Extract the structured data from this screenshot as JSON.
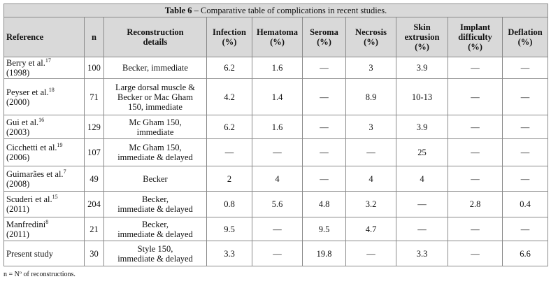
{
  "title": {
    "label": "Table 6",
    "text": " – Comparative table of complications in recent studies."
  },
  "table": {
    "header": [
      "Reference",
      "n",
      "Reconstruction\ndetails",
      "Infection\n(%)",
      "Hematoma\n(%)",
      "Seroma\n(%)",
      "Necrosis\n(%)",
      "Skin\nextrusion\n(%)",
      "Implant\ndifficulty\n(%)",
      "Deflation\n(%)"
    ],
    "rows": [
      [
        {
          "name": "Berry et al.",
          "ref": "17",
          "year": "(1998)"
        },
        "100",
        "Becker, immediate",
        "6.2",
        "1.6",
        "—",
        "3",
        "3.9",
        "—",
        "—"
      ],
      [
        {
          "name": "Peyser et al.",
          "ref": "18",
          "year": "(2000)"
        },
        "71",
        "Large dorsal muscle &\nBecker or Mac Gham\n150, immediate",
        "4.2",
        "1.4",
        "—",
        "8.9",
        "10-13",
        "—",
        "—"
      ],
      [
        {
          "name": "Gui et al.",
          "ref": "16",
          "year": "(2003)"
        },
        "129",
        "Mc Gham 150,\nimmediate",
        "6.2",
        "1.6",
        "—",
        "3",
        "3.9",
        "—",
        "—"
      ],
      [
        {
          "name": "Cicchetti et al.",
          "ref": "19",
          "year": "(2006)"
        },
        "107",
        "Mc Gham 150,\nimmediate & delayed",
        "—",
        "—",
        "—",
        "—",
        "25",
        "—",
        "—"
      ],
      [
        {
          "name": "Guimarães et al.",
          "ref": "7",
          "year": "(2008)"
        },
        "49",
        "Becker",
        "2",
        "4",
        "—",
        "4",
        "4",
        "—",
        "—"
      ],
      [
        {
          "name": "Scuderi et al.",
          "ref": "15",
          "year": "(2011)"
        },
        "204",
        "Becker,\nimmediate & delayed",
        "0.8",
        "5.6",
        "4.8",
        "3.2",
        "—",
        "2.8",
        "0.4"
      ],
      [
        {
          "name": "Manfredini",
          "ref": "8",
          "year": "(2011)"
        },
        "21",
        "Becker,\nimmediate & delayed",
        "9.5",
        "—",
        "9.5",
        "4.7",
        "—",
        "—",
        "—"
      ],
      [
        {
          "name": "Present study",
          "ref": null,
          "year": null
        },
        "30",
        "Style 150,\nimmediate & delayed",
        "3.3",
        "—",
        "19.8",
        "—",
        "3.3",
        "—",
        "6.6"
      ]
    ]
  },
  "footnote": "n = Nº of reconstructions."
}
